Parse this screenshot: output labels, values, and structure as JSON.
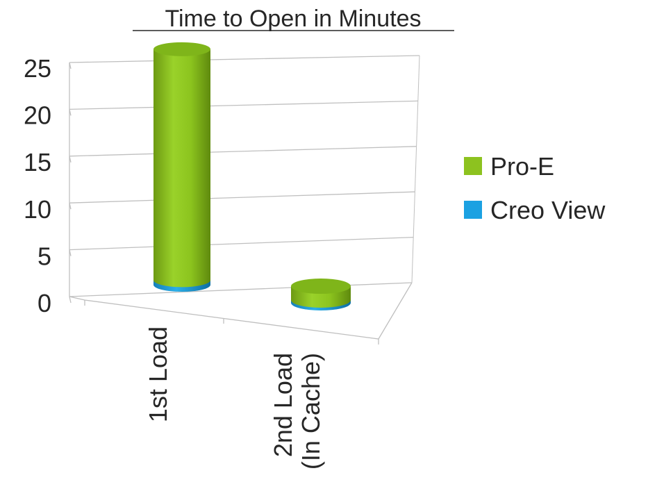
{
  "chart_data": {
    "type": "bar",
    "title": "Time to Open in Minutes",
    "categories": [
      "1st Load",
      [
        "2nd Load",
        "(In Cache)"
      ]
    ],
    "series": [
      {
        "name": "Pro-E",
        "color": "#8DC21F",
        "values": [
          25,
          1.5
        ]
      },
      {
        "name": "Creo View",
        "color": "#1BA1E2",
        "values": [
          0.5,
          0.3
        ]
      }
    ],
    "y_ticks": [
      "0",
      "5",
      "10",
      "15",
      "20",
      "25"
    ],
    "ylim": [
      0,
      25
    ],
    "grid": true,
    "stacked": true,
    "three_d": true,
    "bar_shape": "cylinder",
    "legend_position": "right"
  }
}
